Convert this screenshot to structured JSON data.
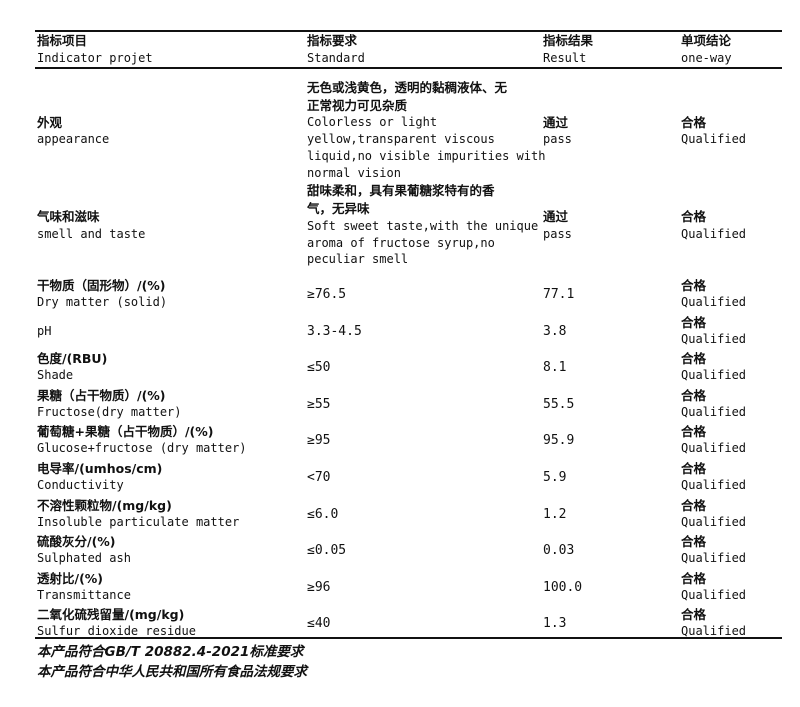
{
  "header": {
    "columns": [
      {
        "zh": "指标项目",
        "en": "Indicator projet"
      },
      {
        "zh": "指标要求",
        "en": "Standard"
      },
      {
        "zh": "指标结果",
        "en": "Result"
      },
      {
        "zh": "单项结论",
        "en": "one-way"
      }
    ]
  },
  "text_rows": [
    {
      "item_zh": "外观",
      "item_en": "appearance",
      "standard_lines": [
        "无色或浅黄色，透明的黏稠液体、无",
        "正常视力可见杂质",
        "Colorless or light",
        "yellow,transparent viscous",
        "liquid,no visible impurities with",
        "normal vision"
      ],
      "result_zh": "通过",
      "result_en": "pass",
      "conclusion_zh": "合格",
      "conclusion_en": "Qualified"
    },
    {
      "item_zh": "气味和滋味",
      "item_en": "smell and taste",
      "standard_lines": [
        "甜味柔和，具有果葡糖浆特有的香",
        "气，无异味",
        "Soft sweet taste,with the unique",
        "aroma of fructose syrup,no",
        "peculiar smell"
      ],
      "result_zh": "通过",
      "result_en": "pass",
      "conclusion_zh": "合格",
      "conclusion_en": "Qualified"
    }
  ],
  "rows": [
    {
      "item_zh": "干物质（固形物）/(%)",
      "item_en": "Dry matter (solid)",
      "standard": "≥76.5",
      "result": "77.1",
      "conclusion_zh": "合格",
      "conclusion_en": "Qualified"
    },
    {
      "item_zh": "",
      "item_en": "pH",
      "standard": "3.3-4.5",
      "result": "3.8",
      "conclusion_zh": "合格",
      "conclusion_en": "Qualified"
    },
    {
      "item_zh": "色度/(RBU)",
      "item_en": "Shade",
      "standard": "≤50",
      "result": "8.1",
      "conclusion_zh": "合格",
      "conclusion_en": "Qualified"
    },
    {
      "item_zh": "果糖（占干物质）/(%)",
      "item_en": "Fructose(dry matter)",
      "standard": "≥55",
      "result": "55.5",
      "conclusion_zh": "合格",
      "conclusion_en": "Qualified"
    },
    {
      "item_zh": "葡萄糖+果糖（占干物质）/(%)",
      "item_en": "Glucose+fructose (dry matter)",
      "standard": "≥95",
      "result": "95.9",
      "conclusion_zh": "合格",
      "conclusion_en": "Qualified"
    },
    {
      "item_zh": "电导率/(umhos/cm)",
      "item_en": "Conductivity",
      "standard": "<70",
      "result": "5.9",
      "conclusion_zh": "合格",
      "conclusion_en": "Qualified"
    },
    {
      "item_zh": "不溶性颗粒物/(mg/kg)",
      "item_en": "Insoluble particulate matter",
      "standard": "≤6.0",
      "result": "1.2",
      "conclusion_zh": "合格",
      "conclusion_en": "Qualified"
    },
    {
      "item_zh": "硫酸灰分/(%)",
      "item_en": "Sulphated ash",
      "standard": "≤0.05",
      "result": "0.03",
      "conclusion_zh": "合格",
      "conclusion_en": "Qualified"
    },
    {
      "item_zh": "透射比/(%)",
      "item_en": "Transmittance",
      "standard": "≥96",
      "result": "100.0",
      "conclusion_zh": "合格",
      "conclusion_en": "Qualified"
    },
    {
      "item_zh": "二氧化硫残留量/(mg/kg)",
      "item_en": "Sulfur dioxide residue",
      "standard": "≤40",
      "result": "1.3",
      "conclusion_zh": "合格",
      "conclusion_en": "Qualified"
    }
  ],
  "footer": [
    "本产品符合GB/T 20882.4-2021标准要求",
    "本产品符合中华人民共和国所有食品法规要求"
  ]
}
